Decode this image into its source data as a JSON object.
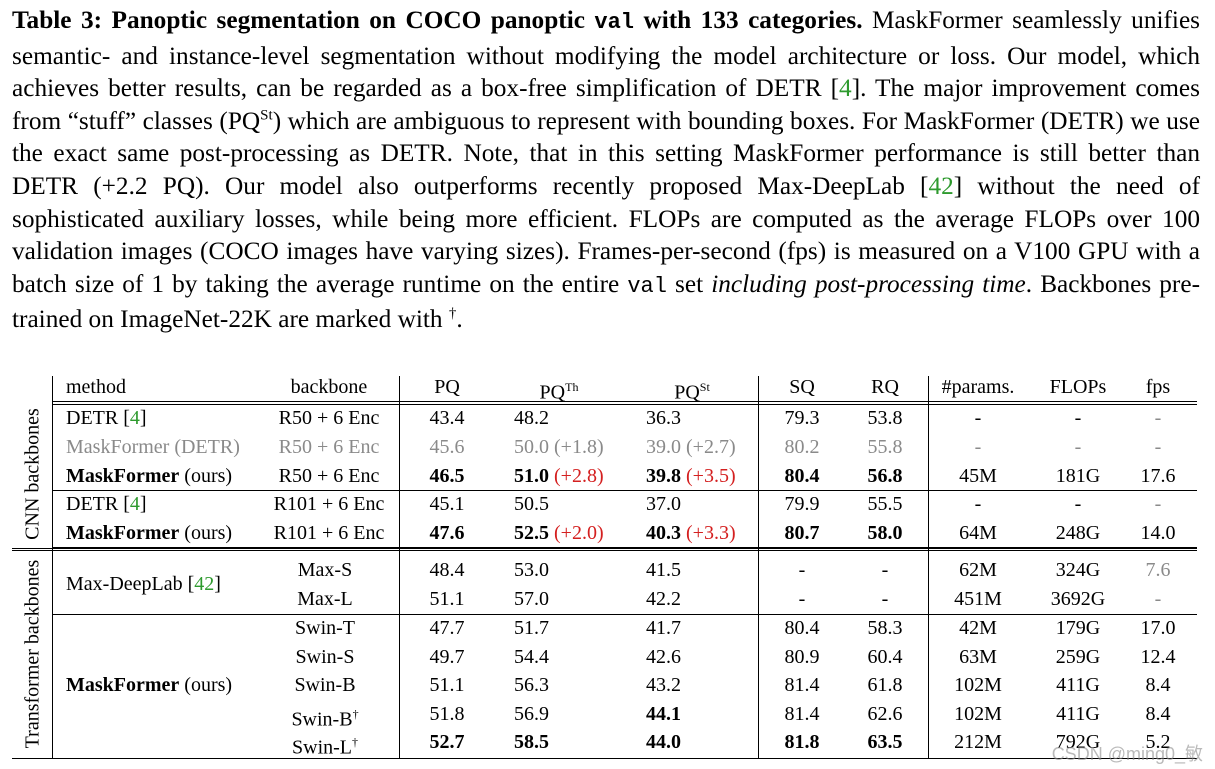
{
  "caption": {
    "label": "Table 3:",
    "bold_title": "Panoptic segmentation on COCO panoptic ",
    "bold_code": "val",
    "bold_title_end": " with 133 categories.",
    "text_1": " MaskFormer seamlessly unifies semantic- and instance-level segmentation without modifying the model architecture or loss. Our model, which achieves better results, can be regarded as a box-free simplification of DETR [",
    "ref_1": "4",
    "text_2": "]. The major improvement comes from “stuff” classes (PQ",
    "sup_st": "St",
    "text_3": ") which are ambiguous to represent with bounding boxes. For MaskFormer (DETR) we use the exact same post-processing as DETR. Note, that in this setting MaskFormer performance is still better than DETR (+2.2 PQ). Our model also outperforms recently proposed Max-DeepLab [",
    "ref_2": "42",
    "text_4": "] without the need of sophisticated auxiliary losses, while being more efficient. FLOPs are computed as the average FLOPs over 100 validation images (COCO images have varying sizes). Frames-per-second (fps) is measured on a V100 GPU with a batch size of 1 by taking the average runtime on the entire ",
    "code_val": "val",
    "text_5": " set ",
    "italic": "including post-processing time",
    "text_6": ". Backbones pre-trained on ImageNet-22K are marked with ",
    "dagger": "†",
    "text_7": "."
  },
  "table": {
    "headers": {
      "method": "method",
      "backbone": "backbone",
      "pq": "PQ",
      "pqth": "PQ",
      "pqth_sup": "Th",
      "pqst": "PQ",
      "pqst_sup": "St",
      "sq": "SQ",
      "rq": "RQ",
      "params": "#params.",
      "flops": "FLOPs",
      "fps": "fps"
    },
    "groups": {
      "cnn": "CNN backbones",
      "transformer": "Transformer backbones"
    },
    "method_names": {
      "detr": "DETR [",
      "detr_ref": "4",
      "detr_end": "]",
      "maskformer_detr": "MaskFormer (DETR)",
      "maskformer_bold": "MaskFormer",
      "ours": " (ours)",
      "maxdeeplab": "Max-DeepLab [",
      "maxdeeplab_ref": "42",
      "maxdeeplab_end": "]"
    },
    "rows": [
      {
        "backbone": "R50 + 6 Enc",
        "pq": "43.4",
        "pqth": "48.2",
        "pqst": "36.3",
        "sq": "79.3",
        "rq": "53.8",
        "params": "-",
        "flops": "-",
        "fps": "-"
      },
      {
        "backbone": "R50 + 6 Enc",
        "pq": "45.6",
        "pqth": "50.0",
        "pqth_delta": "(+1.8)",
        "pqst": "39.0",
        "pqst_delta": "(+2.7)",
        "sq": "80.2",
        "rq": "55.8",
        "params": "-",
        "flops": "-",
        "fps": "-"
      },
      {
        "backbone": "R50 + 6 Enc",
        "pq": "46.5",
        "pqth": "51.0",
        "pqth_delta": "(+2.8)",
        "pqst": "39.8",
        "pqst_delta": "(+3.5)",
        "sq": "80.4",
        "rq": "56.8",
        "params": "45M",
        "flops": "181G",
        "fps": "17.6"
      },
      {
        "backbone": "R101 + 6 Enc",
        "pq": "45.1",
        "pqth": "50.5",
        "pqst": "37.0",
        "sq": "79.9",
        "rq": "55.5",
        "params": "-",
        "flops": "-",
        "fps": "-"
      },
      {
        "backbone": "R101 + 6 Enc",
        "pq": "47.6",
        "pqth": "52.5",
        "pqth_delta": "(+2.0)",
        "pqst": "40.3",
        "pqst_delta": "(+3.3)",
        "sq": "80.7",
        "rq": "58.0",
        "params": "64M",
        "flops": "248G",
        "fps": "14.0"
      },
      {
        "backbone": "Max-S",
        "pq": "48.4",
        "pqth": "53.0",
        "pqst": "41.5",
        "sq": "-",
        "rq": "-",
        "params": "62M",
        "flops": "324G",
        "fps": "7.6"
      },
      {
        "backbone": "Max-L",
        "pq": "51.1",
        "pqth": "57.0",
        "pqst": "42.2",
        "sq": "-",
        "rq": "-",
        "params": "451M",
        "flops": "3692G",
        "fps": "-"
      },
      {
        "backbone": "Swin-T",
        "pq": "47.7",
        "pqth": "51.7",
        "pqst": "41.7",
        "sq": "80.4",
        "rq": "58.3",
        "params": "42M",
        "flops": "179G",
        "fps": "17.0"
      },
      {
        "backbone": "Swin-S",
        "pq": "49.7",
        "pqth": "54.4",
        "pqst": "42.6",
        "sq": "80.9",
        "rq": "60.4",
        "params": "63M",
        "flops": "259G",
        "fps": "12.4"
      },
      {
        "backbone": "Swin-B",
        "pq": "51.1",
        "pqth": "56.3",
        "pqst": "43.2",
        "sq": "81.4",
        "rq": "61.8",
        "params": "102M",
        "flops": "411G",
        "fps": "8.4"
      },
      {
        "backbone": "Swin-B",
        "backbone_sup": "†",
        "pq": "51.8",
        "pqth": "56.9",
        "pqst": "44.1",
        "sq": "81.4",
        "rq": "62.6",
        "params": "102M",
        "flops": "411G",
        "fps": "8.4"
      },
      {
        "backbone": "Swin-L",
        "backbone_sup": "†",
        "pq": "52.7",
        "pqth": "58.5",
        "pqst": "44.0",
        "sq": "81.8",
        "rq": "63.5",
        "params": "212M",
        "flops": "792G",
        "fps": "5.2"
      }
    ]
  },
  "watermark": "CSDN @ming0_敏",
  "colors": {
    "reference": "#2e9a2e",
    "delta": "#d42020",
    "muted": "#8a8a8a"
  }
}
